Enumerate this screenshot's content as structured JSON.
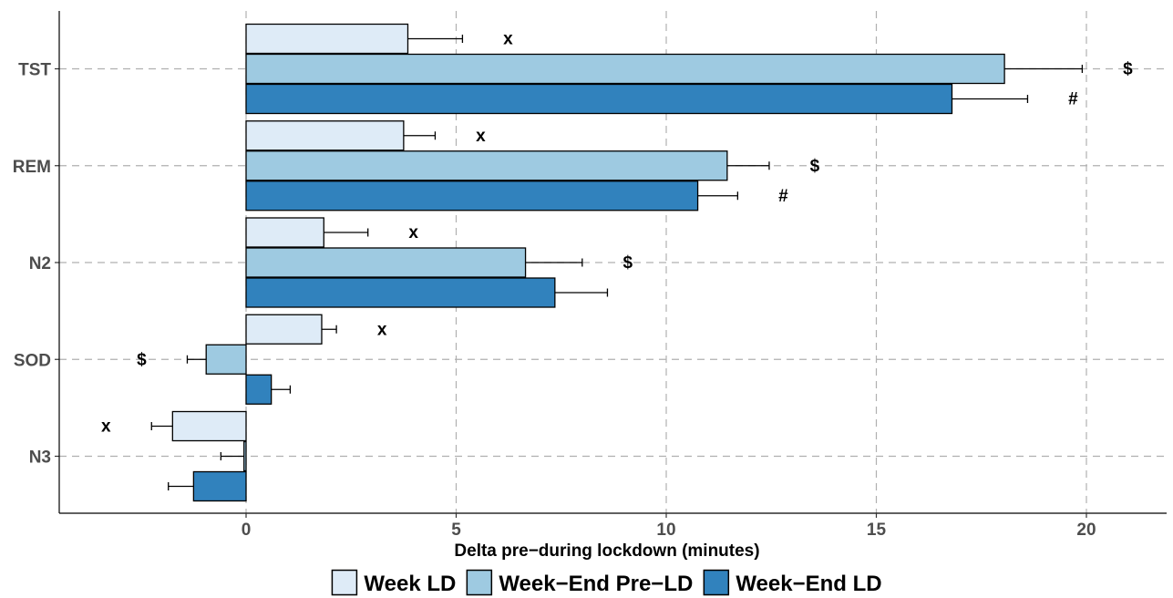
{
  "chart_data": {
    "type": "bar",
    "orientation": "horizontal",
    "categories": [
      "TST",
      "REM",
      "N2",
      "SOD",
      "N3"
    ],
    "series": [
      {
        "name": "Week LD",
        "color": "#deebf7",
        "values": [
          3.85,
          3.75,
          1.85,
          1.8,
          -1.75
        ],
        "errors": [
          1.3,
          0.75,
          1.05,
          0.35,
          0.5
        ],
        "annotations": [
          "x",
          "x",
          "x",
          "x",
          "x"
        ]
      },
      {
        "name": "Week−End Pre−LD",
        "color": "#9ecae1",
        "values": [
          18.05,
          11.45,
          6.65,
          -0.95,
          -0.05
        ],
        "errors": [
          1.85,
          1.0,
          1.35,
          0.45,
          0.55
        ],
        "annotations": [
          "$",
          "$",
          "$",
          "$",
          ""
        ]
      },
      {
        "name": "Week−End LD",
        "color": "#3182bd",
        "values": [
          16.8,
          10.75,
          7.35,
          0.6,
          -1.25
        ],
        "errors": [
          1.8,
          0.95,
          1.25,
          0.45,
          0.6
        ],
        "annotations": [
          "#",
          "#",
          "",
          "",
          ""
        ]
      }
    ],
    "xlabel": "Delta pre−during lockdown  (minutes)",
    "ylabel": "",
    "xlim": [
      -4.5,
      21.5
    ],
    "xticks": [
      0,
      5,
      10,
      15,
      20
    ],
    "grid": true,
    "legend_position": "bottom"
  }
}
